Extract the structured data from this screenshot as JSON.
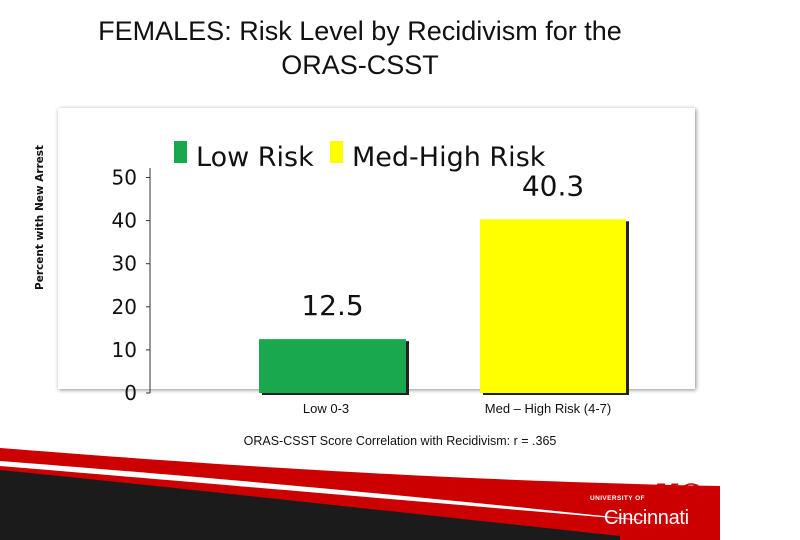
{
  "title_line1": "FEMALES: Risk Level by Recidivism for the",
  "title_line2": "ORAS-CSST",
  "footnote": "ORAS-CSST Score Correlation with Recidivism: r = .365",
  "colors": {
    "low_risk": "#1aa84e",
    "med_high_risk": "#ffff00",
    "brand_red": "#cc0000",
    "logo_bg": "#111111"
  },
  "logo": {
    "line1": "UNIVERSITY OF",
    "line2": "Cincinnati",
    "mark": "UC"
  },
  "chart_data": {
    "type": "bar",
    "title": "FEMALES: Risk Level by Recidivism for the ORAS-CSST",
    "ylabel": "Percent with New Arrest",
    "xlabel": "",
    "ylim": [
      0,
      55
    ],
    "yticks": [
      0,
      10,
      20,
      30,
      40,
      50
    ],
    "categories": [
      "Low 0-3",
      "Med – High Risk (4-7)"
    ],
    "series": [
      {
        "name": "Low Risk",
        "values": [
          12.5,
          null
        ],
        "color": "#1aa84e"
      },
      {
        "name": "Med-High Risk",
        "values": [
          null,
          40.3
        ],
        "color": "#ffff00"
      }
    ],
    "value_labels": [
      "12.5",
      "40.3"
    ],
    "legend": [
      "Low Risk",
      "Med-High Risk"
    ],
    "legend_position": "top"
  }
}
